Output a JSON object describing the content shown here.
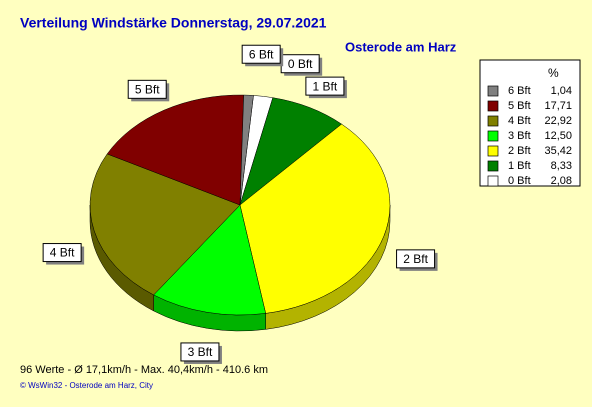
{
  "chart_data": {
    "type": "pie",
    "title": "Verteilung Windstärke  Donnerstag, 29.07.2021",
    "subtitle": "Osterode am Harz",
    "legend_header": "%",
    "categories": [
      "6 Bft",
      "5 Bft",
      "4 Bft",
      "3 Bft",
      "2 Bft",
      "1 Bft",
      "0 Bft"
    ],
    "values": [
      1.04,
      17.71,
      22.92,
      12.5,
      35.42,
      8.33,
      2.08
    ],
    "value_labels": [
      "1,04",
      "17,71",
      "22,92",
      "12,50",
      "35,42",
      "8,33",
      "2,08"
    ],
    "colors": [
      "#808080",
      "#800000",
      "#808000",
      "#00ff00",
      "#ffff00",
      "#008000",
      "#ffffff"
    ],
    "footer": "96 Werte   -   Ø 17,1km/h  -  Max. 40,4km/h   -   410.6 km",
    "copyright": "© WsWin32  -  Osterode am Harz, City"
  }
}
